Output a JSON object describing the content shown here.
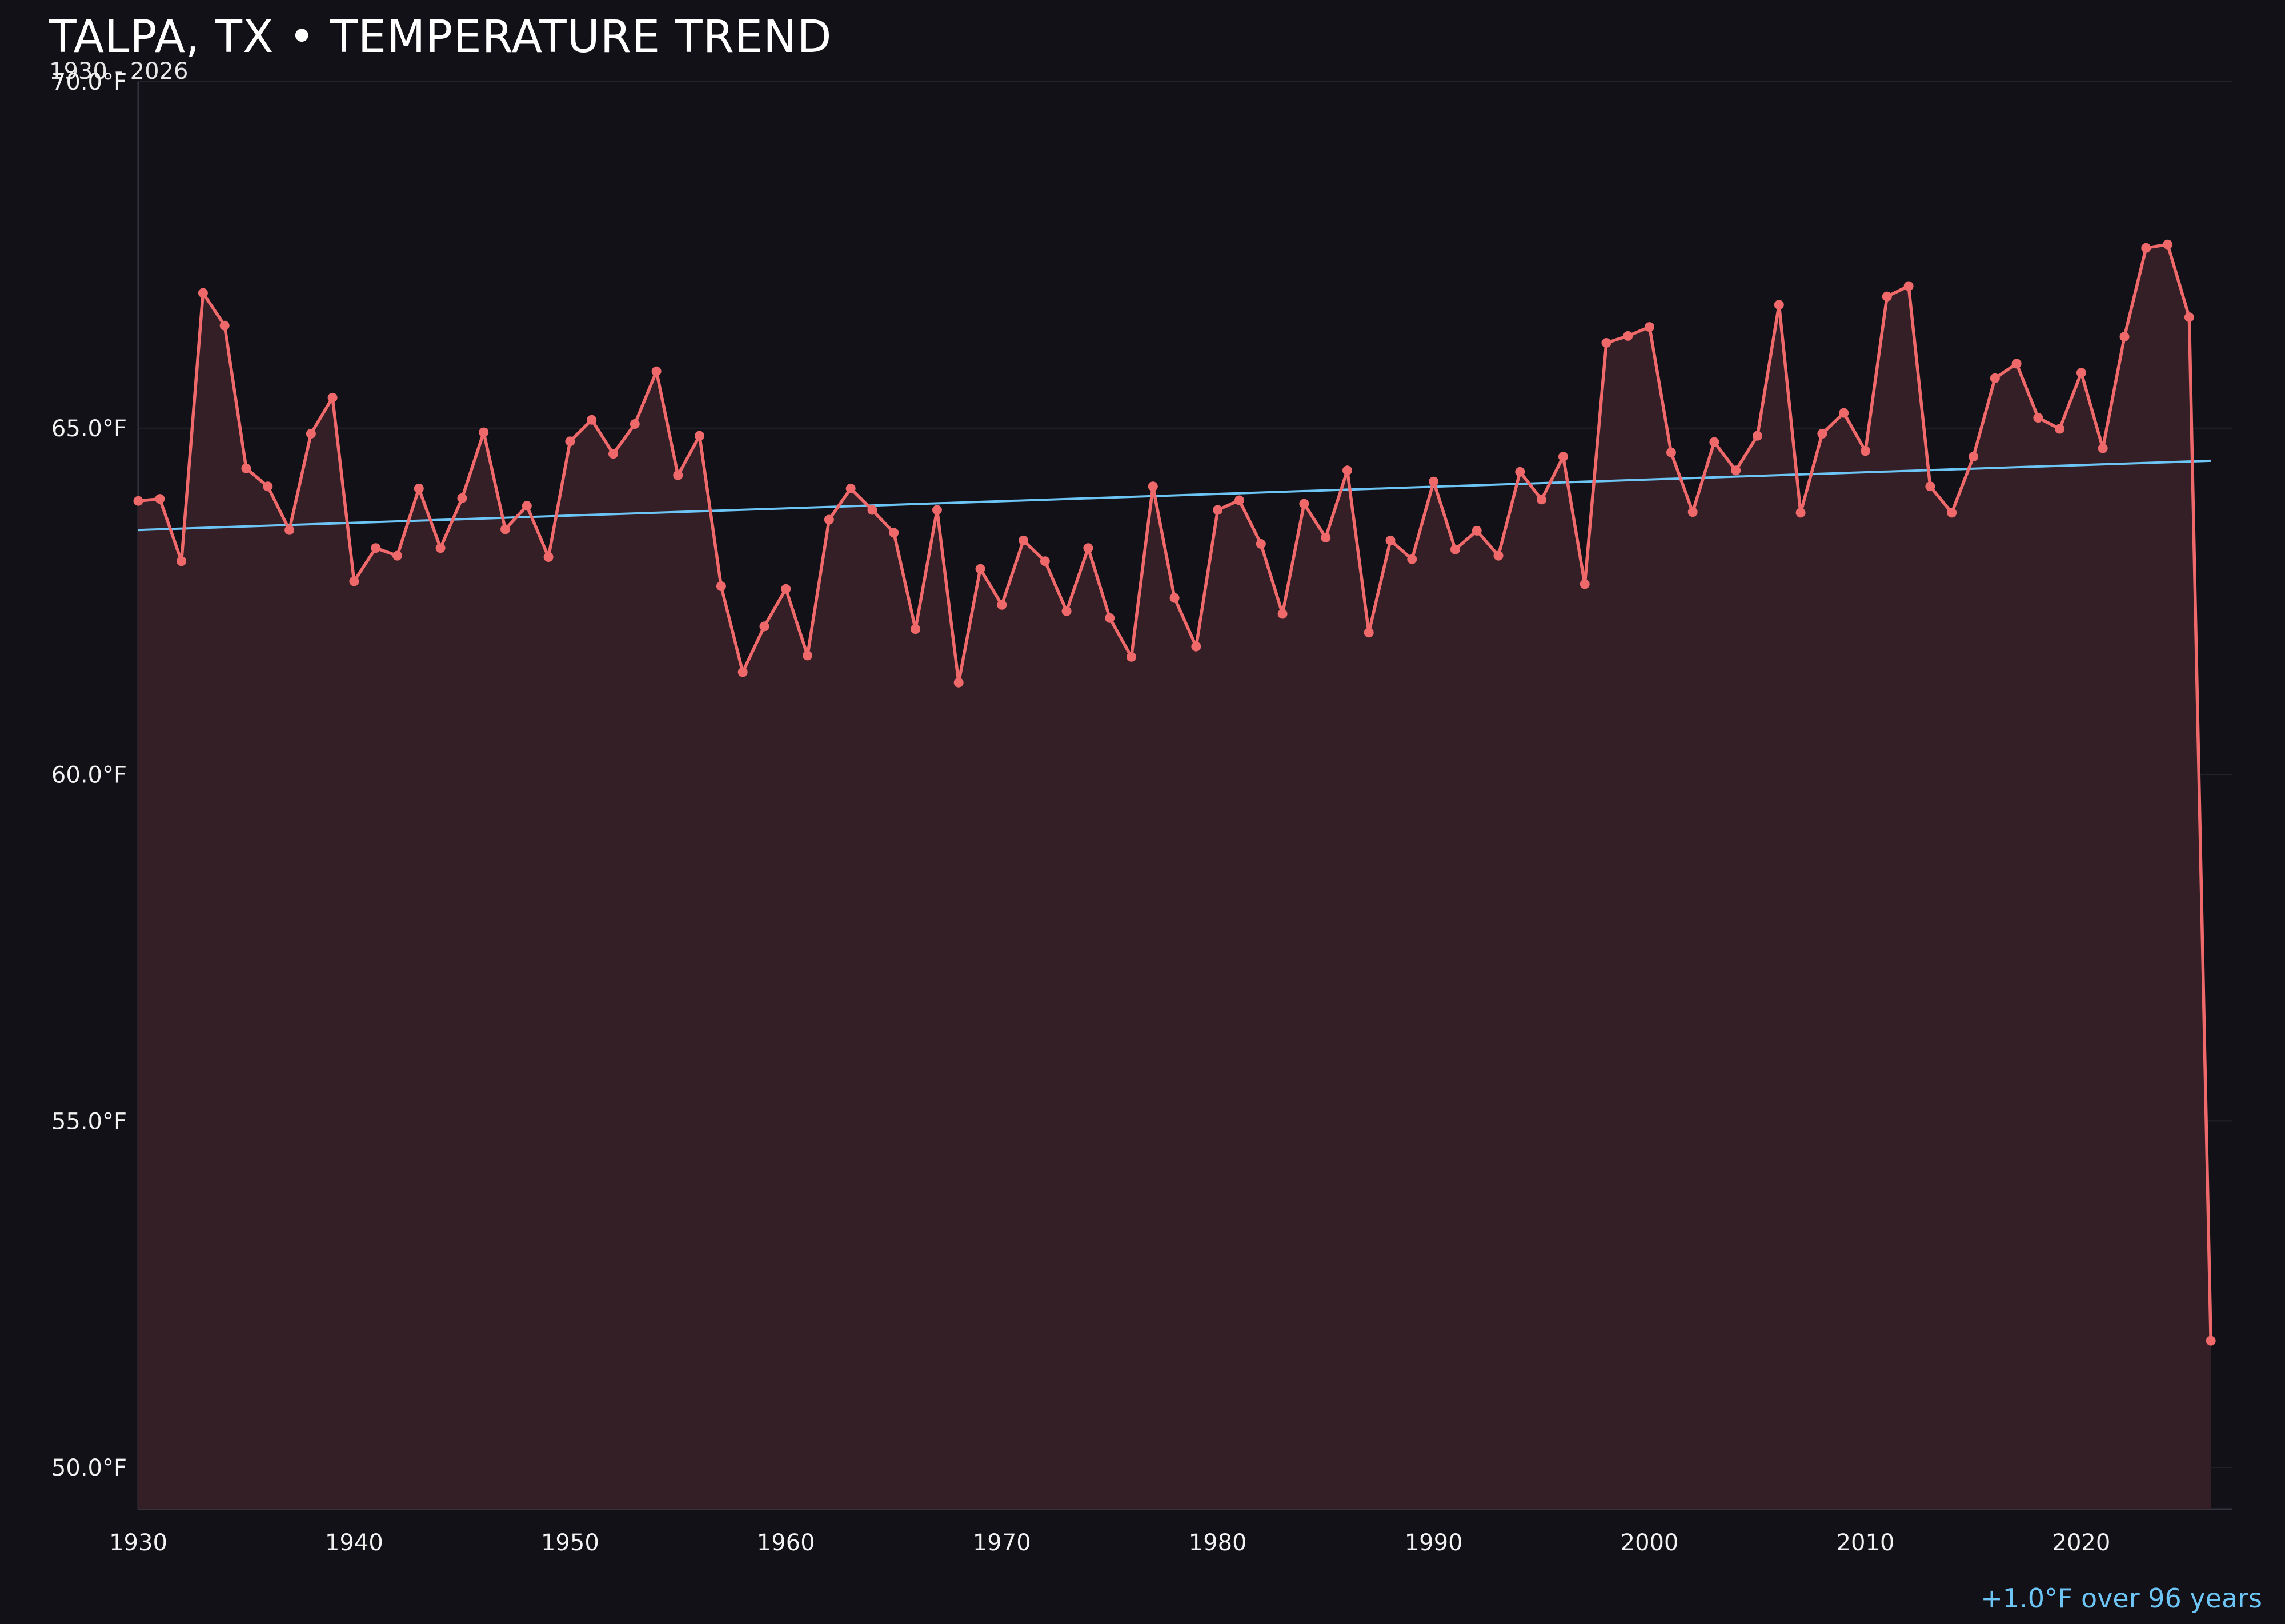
{
  "chart_data": {
    "type": "line",
    "title": "TALPA, TX • TEMPERATURE TREND",
    "subtitle": "1930 - 2026",
    "xlabel": "",
    "ylabel": "",
    "xlim": [
      1930,
      2027
    ],
    "ylim": [
      49.4,
      70.0
    ],
    "x_ticks": [
      1930,
      1940,
      1950,
      1960,
      1970,
      1980,
      1990,
      2000,
      2010,
      2020
    ],
    "x_tick_labels": [
      "1930",
      "1940",
      "1950",
      "1960",
      "1970",
      "1980",
      "1990",
      "2000",
      "2010",
      "2020"
    ],
    "y_ticks": [
      50,
      55,
      60,
      65,
      70
    ],
    "y_tick_labels": [
      "50.0°F",
      "55.0°F",
      "60.0°F",
      "65.0°F",
      "70.0°F"
    ],
    "grid": true,
    "annotation": "+1.0°F over 96 years",
    "colors": {
      "background": "#121117",
      "series_line": "#f0696a",
      "series_fill": "#351f26",
      "trend_line": "#6cc5f5",
      "grid": "#24232a",
      "axis": "#34333b"
    },
    "series": [
      {
        "x": [
          1930,
          1931,
          1932,
          1933,
          1934,
          1935,
          1936,
          1937,
          1938,
          1939,
          1940,
          1941,
          1942,
          1943,
          1944,
          1945,
          1946,
          1947,
          1948,
          1949,
          1950,
          1951,
          1952,
          1953,
          1954,
          1955,
          1956,
          1957,
          1958,
          1959,
          1960,
          1961,
          1962,
          1963,
          1964,
          1965,
          1966,
          1967,
          1968,
          1969,
          1970,
          1971,
          1972,
          1973,
          1974,
          1975,
          1976,
          1977,
          1978,
          1979,
          1980,
          1981,
          1982,
          1983,
          1984,
          1985,
          1986,
          1987,
          1988,
          1989,
          1990,
          1991,
          1992,
          1993,
          1994,
          1995,
          1996,
          1997,
          1998,
          1999,
          2000,
          2001,
          2002,
          2003,
          2004,
          2005,
          2006,
          2007,
          2008,
          2009,
          2010,
          2011,
          2012,
          2013,
          2014,
          2015,
          2016,
          2017,
          2018,
          2019,
          2020,
          2021,
          2022,
          2023,
          2024,
          2025,
          2026
        ],
        "values": [
          63.95,
          63.98,
          63.08,
          66.95,
          66.48,
          64.42,
          64.16,
          63.53,
          64.92,
          65.44,
          62.79,
          63.27,
          63.16,
          64.13,
          63.27,
          63.99,
          64.94,
          63.54,
          63.88,
          63.14,
          64.81,
          65.12,
          64.63,
          65.06,
          65.82,
          64.32,
          64.89,
          62.72,
          61.48,
          62.14,
          62.68,
          61.72,
          63.68,
          64.13,
          63.82,
          63.49,
          62.1,
          63.82,
          61.33,
          62.97,
          62.45,
          63.38,
          63.08,
          62.36,
          63.27,
          62.26,
          61.7,
          64.16,
          62.55,
          61.85,
          63.82,
          63.96,
          63.33,
          62.32,
          63.91,
          63.42,
          64.39,
          62.05,
          63.38,
          63.11,
          64.23,
          63.25,
          63.52,
          63.16,
          64.37,
          63.97,
          64.59,
          62.75,
          66.23,
          66.33,
          66.46,
          64.65,
          63.79,
          64.8,
          64.39,
          64.89,
          66.78,
          63.78,
          64.92,
          65.22,
          64.67,
          66.9,
          67.05,
          64.16,
          63.78,
          64.59,
          65.72,
          65.93,
          65.15,
          64.99,
          65.8,
          64.71,
          66.32,
          67.6,
          67.65,
          66.6,
          51.83
        ]
      }
    ],
    "trend": {
      "x": [
        1930,
        2026
      ],
      "values": [
        63.53,
        64.53
      ]
    }
  }
}
